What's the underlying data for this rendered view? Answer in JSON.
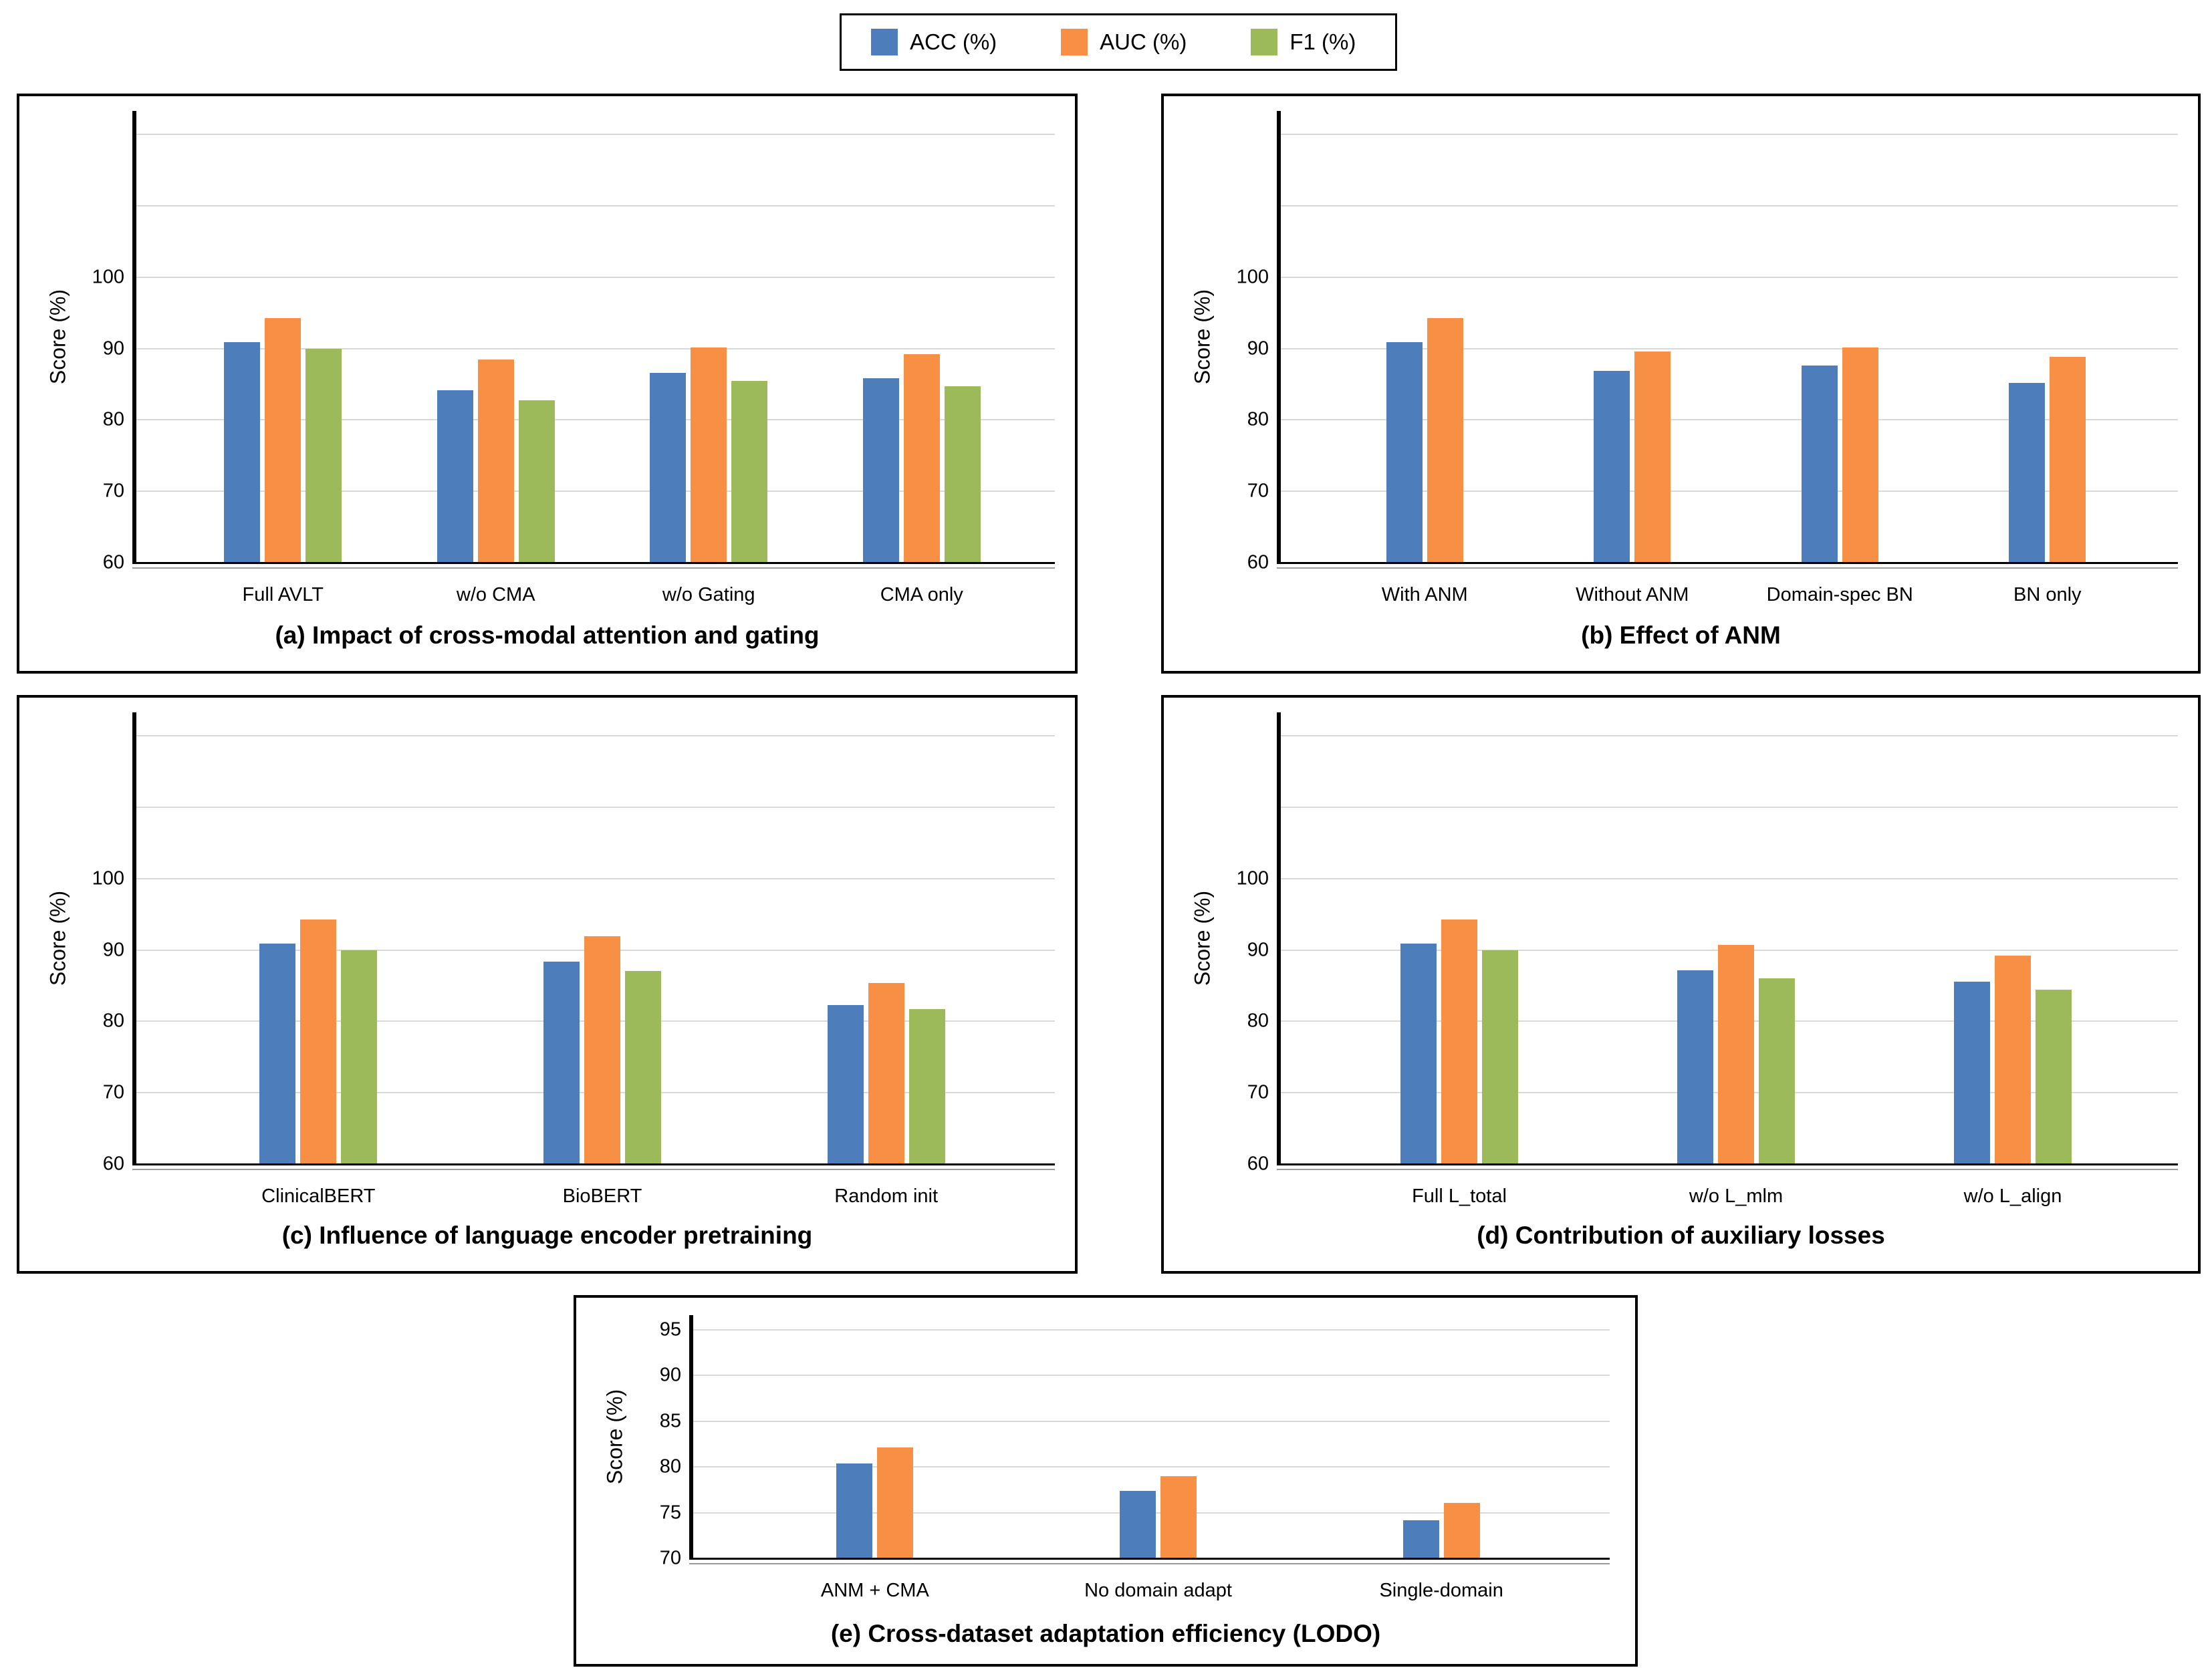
{
  "legend": {
    "items": [
      {
        "label": "ACC (%)",
        "color": "#4d7ebb"
      },
      {
        "label": "AUC (%)",
        "color": "#f79044"
      },
      {
        "label": "F1 (%)",
        "color": "#9cba5a"
      }
    ]
  },
  "chart_data": [
    {
      "type": "bar",
      "title": "(a) Impact of cross-modal attention and gating",
      "ylabel": "Score (%)",
      "categories": [
        "Full AVLT",
        "w/o CMA",
        "w/o Gating",
        "CMA only"
      ],
      "series": [
        {
          "name": "ACC (%)",
          "color": "#4d7ebb",
          "values": [
            90.9,
            84.2,
            86.6,
            85.8
          ]
        },
        {
          "name": "AUC (%)",
          "color": "#f79044",
          "values": [
            94.3,
            88.5,
            90.2,
            89.2
          ]
        },
        {
          "name": "F1 (%)",
          "color": "#9cba5a",
          "values": [
            90.0,
            82.8,
            85.5,
            84.7
          ]
        }
      ],
      "ylim": [
        60,
        123.3
      ],
      "yticks": [
        60,
        70,
        80,
        90,
        100
      ],
      "gridlines": [
        70,
        80,
        90,
        100,
        110,
        120
      ],
      "grid": true,
      "legend_position": "shared-top"
    },
    {
      "type": "bar",
      "title": "(b) Effect of ANM",
      "ylabel": "Score (%)",
      "categories": [
        "With ANM",
        "Without ANM",
        "Domain-spec BN",
        "BN only"
      ],
      "series": [
        {
          "name": "ACC (%)",
          "color": "#4d7ebb",
          "values": [
            90.9,
            86.9,
            87.6,
            85.2
          ]
        },
        {
          "name": "AUC (%)",
          "color": "#f79044",
          "values": [
            94.3,
            89.6,
            90.2,
            88.8
          ]
        }
      ],
      "ylim": [
        60,
        123.3
      ],
      "yticks": [
        60,
        70,
        80,
        90,
        100
      ],
      "gridlines": [
        70,
        80,
        90,
        100,
        110,
        120
      ],
      "grid": true,
      "legend_position": "shared-top"
    },
    {
      "type": "bar",
      "title": "(c) Influence of language encoder pretraining",
      "ylabel": "Score (%)",
      "categories": [
        "ClinicalBERT",
        "BioBERT",
        "Random init"
      ],
      "series": [
        {
          "name": "ACC (%)",
          "color": "#4d7ebb",
          "values": [
            90.9,
            88.4,
            82.3
          ]
        },
        {
          "name": "AUC (%)",
          "color": "#f79044",
          "values": [
            94.3,
            91.9,
            85.4
          ]
        },
        {
          "name": "F1 (%)",
          "color": "#9cba5a",
          "values": [
            90.0,
            87.1,
            81.7
          ]
        }
      ],
      "ylim": [
        60,
        123.3
      ],
      "yticks": [
        60,
        70,
        80,
        90,
        100
      ],
      "gridlines": [
        70,
        80,
        90,
        100,
        110,
        120
      ],
      "grid": true,
      "legend_position": "shared-top"
    },
    {
      "type": "bar",
      "title": "(d) Contribution of auxiliary losses",
      "ylabel": "Score (%)",
      "categories": [
        "Full L_total",
        "w/o L_mlm",
        "w/o L_align"
      ],
      "series": [
        {
          "name": "ACC (%)",
          "color": "#4d7ebb",
          "values": [
            90.9,
            87.2,
            85.6
          ]
        },
        {
          "name": "AUC (%)",
          "color": "#f79044",
          "values": [
            94.3,
            90.7,
            89.2
          ]
        },
        {
          "name": "F1 (%)",
          "color": "#9cba5a",
          "values": [
            90.0,
            86.0,
            84.4
          ]
        }
      ],
      "ylim": [
        60,
        123.3
      ],
      "yticks": [
        60,
        70,
        80,
        90,
        100
      ],
      "gridlines": [
        70,
        80,
        90,
        100,
        110,
        120
      ],
      "grid": true,
      "legend_position": "shared-top"
    },
    {
      "type": "bar",
      "title": "(e) Cross-dataset adaptation efficiency (LODO)",
      "ylabel": "Score (%)",
      "categories": [
        "ANM + CMA",
        "No domain adapt",
        "Single-domain"
      ],
      "series": [
        {
          "name": "ACC (%)",
          "color": "#4d7ebb",
          "values": [
            80.4,
            77.4,
            74.2
          ]
        },
        {
          "name": "AUC (%)",
          "color": "#f79044",
          "values": [
            82.1,
            79.0,
            76.1
          ]
        }
      ],
      "ylim": [
        70,
        96.6
      ],
      "yticks": [
        70,
        75,
        80,
        85,
        90,
        95
      ],
      "gridlines": [
        75,
        80,
        85,
        90,
        95
      ],
      "grid": true,
      "legend_position": "shared-top"
    }
  ]
}
